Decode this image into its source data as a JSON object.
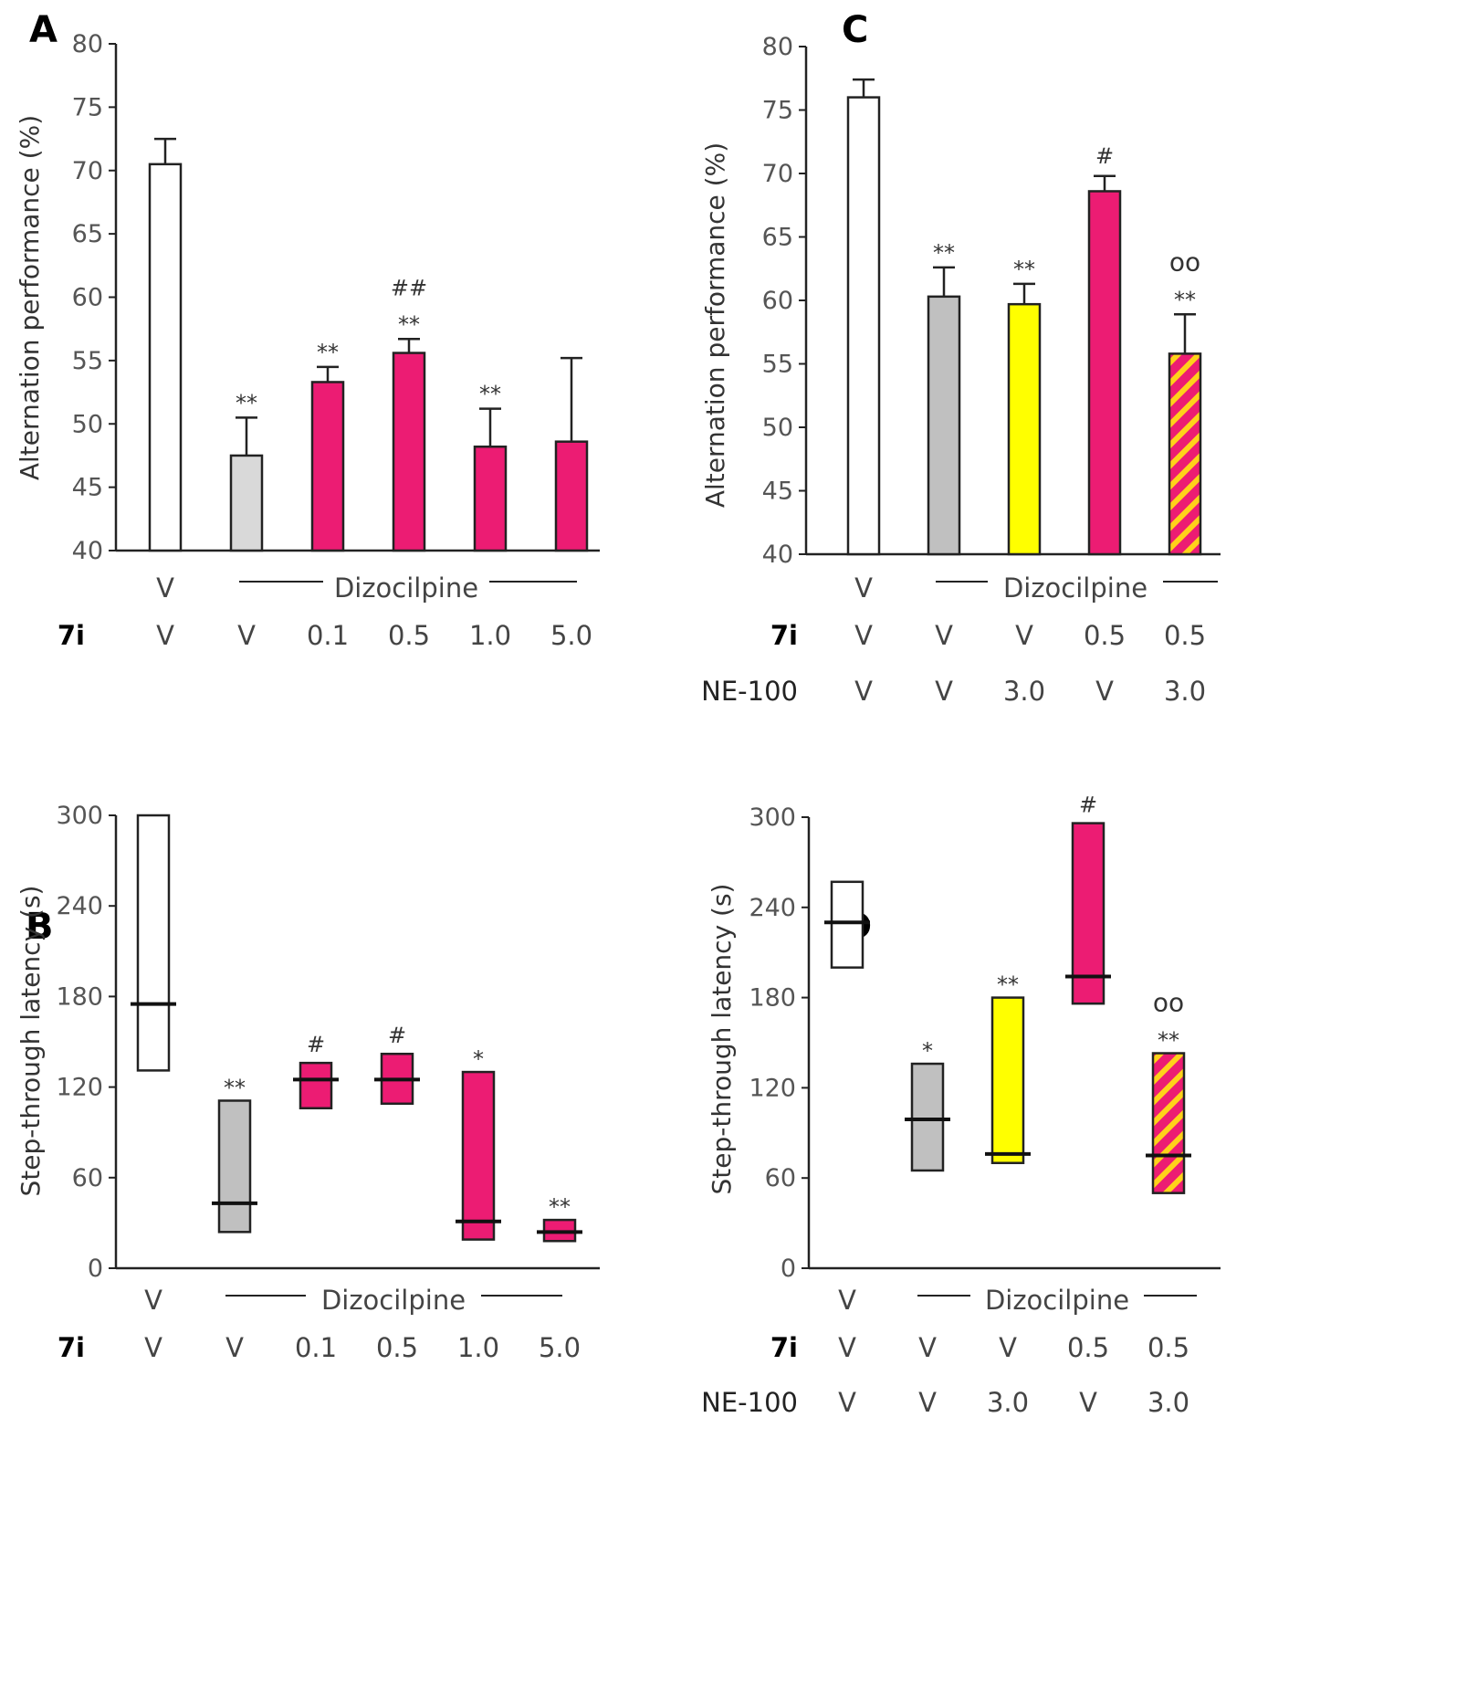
{
  "figure": {
    "page_width": 1607,
    "page_height": 1863
  },
  "colors": {
    "vehicle": "#ffffff",
    "dizocilpine": "#d9d9d9",
    "dizocilpine_dark": "#c0c0c0",
    "compound_7i": "#ec1c73",
    "ne100": "#ffff00",
    "hatch_bg": "#ec1c73",
    "hatch_stripe": "#ffd21a"
  },
  "chart_data": [
    {
      "panel": "A",
      "type": "bar",
      "ylabel": "Alternation performance (%)",
      "ylim": [
        40,
        80
      ],
      "yticks": [
        40,
        45,
        50,
        55,
        60,
        65,
        70,
        75,
        80
      ],
      "group_label": "Dizocilpine",
      "treatment_rows": [
        {
          "label": "V",
          "values": [
            "V",
            "",
            "",
            "",
            "",
            ""
          ],
          "bold": false,
          "top": true
        },
        {
          "label": "7i",
          "values": [
            "V",
            "V",
            "0.1",
            "0.5",
            "1.0",
            "5.0"
          ],
          "bold": true,
          "top": false
        }
      ],
      "bars": [
        {
          "value": 70.5,
          "error": 2.0,
          "fill": "vehicle",
          "annotations": []
        },
        {
          "value": 47.5,
          "error": 3.0,
          "fill": "dizocilpine",
          "annotations": [
            "**"
          ]
        },
        {
          "value": 53.3,
          "error": 1.2,
          "fill": "compound_7i",
          "annotations": [
            "**"
          ]
        },
        {
          "value": 55.6,
          "error": 1.1,
          "fill": "compound_7i",
          "annotations": [
            "**",
            "##"
          ]
        },
        {
          "value": 48.2,
          "error": 3.0,
          "fill": "compound_7i",
          "annotations": [
            "**"
          ]
        },
        {
          "value": 48.6,
          "error": 6.6,
          "fill": "compound_7i",
          "annotations": []
        }
      ]
    },
    {
      "panel": "C",
      "type": "bar",
      "ylabel": "Alternation performance (%)",
      "ylim": [
        40,
        80
      ],
      "yticks": [
        40,
        45,
        50,
        55,
        60,
        65,
        70,
        75,
        80
      ],
      "group_label": "Dizocilpine",
      "treatment_rows": [
        {
          "label": "V",
          "values": [
            "V",
            "",
            "",
            "",
            ""
          ],
          "bold": false,
          "top": true
        },
        {
          "label": "7i",
          "values": [
            "V",
            "V",
            "V",
            "0.5",
            "0.5"
          ],
          "bold": true,
          "top": false
        },
        {
          "label": "NE-100",
          "values": [
            "V",
            "V",
            "3.0",
            "V",
            "3.0"
          ],
          "bold": false,
          "top": false
        }
      ],
      "bars": [
        {
          "value": 76.0,
          "error": 1.4,
          "fill": "vehicle",
          "annotations": []
        },
        {
          "value": 60.3,
          "error": 2.3,
          "fill": "dizocilpine_dark",
          "annotations": [
            "**"
          ]
        },
        {
          "value": 59.7,
          "error": 1.6,
          "fill": "ne100",
          "annotations": [
            "**"
          ]
        },
        {
          "value": 68.6,
          "error": 1.2,
          "fill": "compound_7i",
          "annotations": [
            "#"
          ]
        },
        {
          "value": 55.8,
          "error": 3.1,
          "fill": "hatched",
          "annotations": [
            "**",
            "oo"
          ]
        }
      ]
    },
    {
      "panel": "B",
      "type": "box",
      "ylabel": "Step-through latency (s)",
      "ylim": [
        0,
        300
      ],
      "yticks": [
        0,
        60,
        120,
        180,
        240,
        300
      ],
      "group_label": "Dizocilpine",
      "treatment_rows": [
        {
          "label": "V",
          "values": [
            "V",
            "",
            "",
            "",
            "",
            ""
          ],
          "bold": false,
          "top": true
        },
        {
          "label": "7i",
          "values": [
            "V",
            "V",
            "0.1",
            "0.5",
            "1.0",
            "5.0"
          ],
          "bold": true,
          "top": false
        }
      ],
      "boxes": [
        {
          "low": 131,
          "high": 300,
          "median": 175,
          "fill": "vehicle",
          "annotations": []
        },
        {
          "low": 24,
          "high": 111,
          "median": 43,
          "fill": "dizocilpine_dark",
          "annotations": [
            "**"
          ]
        },
        {
          "low": 106,
          "high": 136,
          "median": 125,
          "fill": "compound_7i",
          "annotations": [
            "#"
          ]
        },
        {
          "low": 109,
          "high": 142,
          "median": 125,
          "fill": "compound_7i",
          "annotations": [
            "#"
          ]
        },
        {
          "low": 19,
          "high": 130,
          "median": 31,
          "fill": "compound_7i",
          "annotations": [
            "*"
          ]
        },
        {
          "low": 18,
          "high": 32,
          "median": 24,
          "fill": "compound_7i",
          "annotations": [
            "**"
          ]
        }
      ]
    },
    {
      "panel": "D",
      "type": "box",
      "ylabel": "Step-through latency (s)",
      "ylim": [
        0,
        300
      ],
      "yticks": [
        0,
        60,
        120,
        180,
        240,
        300
      ],
      "group_label": "Dizocilpine",
      "treatment_rows": [
        {
          "label": "V",
          "values": [
            "V",
            "",
            "",
            "",
            ""
          ],
          "bold": false,
          "top": true
        },
        {
          "label": "7i",
          "values": [
            "V",
            "V",
            "V",
            "0.5",
            "0.5"
          ],
          "bold": true,
          "top": false
        },
        {
          "label": "NE-100",
          "values": [
            "V",
            "V",
            "3.0",
            "V",
            "3.0"
          ],
          "bold": false,
          "top": false
        }
      ],
      "boxes": [
        {
          "low": 200,
          "high": 257,
          "median": 230,
          "fill": "vehicle",
          "annotations": []
        },
        {
          "low": 65,
          "high": 136,
          "median": 99,
          "fill": "dizocilpine_dark",
          "annotations": [
            "*"
          ]
        },
        {
          "low": 70,
          "high": 180,
          "median": 76,
          "fill": "ne100",
          "annotations": [
            "**"
          ]
        },
        {
          "low": 176,
          "high": 296,
          "median": 194,
          "fill": "compound_7i",
          "annotations": [
            "#"
          ]
        },
        {
          "low": 50,
          "high": 143,
          "median": 75,
          "fill": "hatched",
          "annotations": [
            "**",
            "oo"
          ]
        }
      ]
    }
  ]
}
